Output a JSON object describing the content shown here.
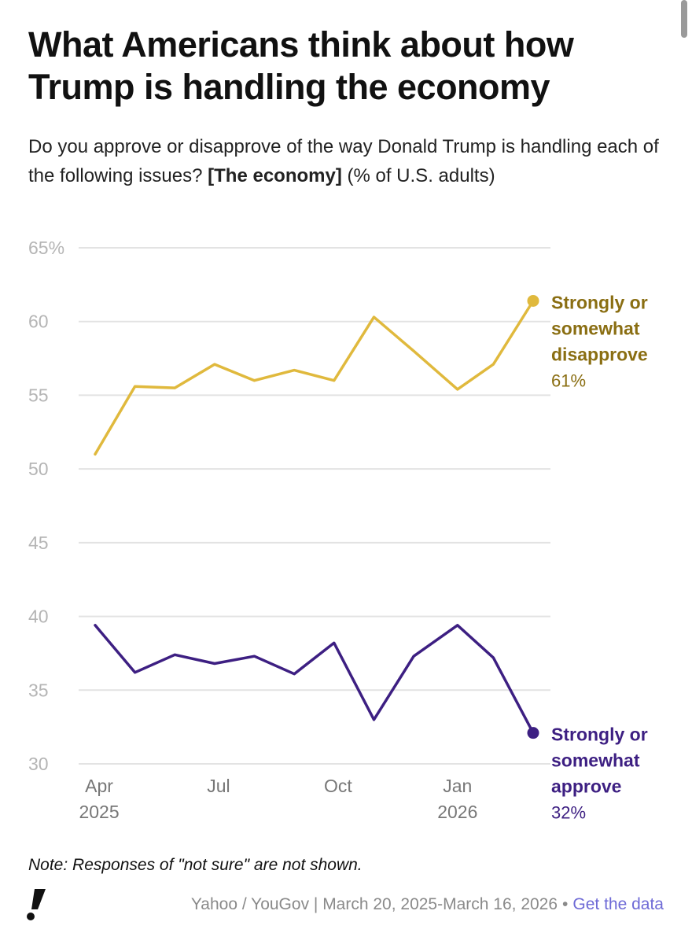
{
  "header": {
    "title": "What Americans think about how Trump is handling the economy",
    "subtitle_pre": "Do you approve or disapprove of the way Donald Trump is handling each of the following issues?",
    "subtitle_emph": "[The economy]",
    "subtitle_post": "(% of U.S. adults)"
  },
  "chart_data": {
    "type": "line",
    "title": "What Americans think about how Trump is handling the economy",
    "ylim": [
      30,
      65
    ],
    "yticks": [
      "65%",
      "60",
      "55",
      "50",
      "45",
      "40",
      "35",
      "30"
    ],
    "ytick_values": [
      65,
      60,
      55,
      50,
      45,
      40,
      35,
      30
    ],
    "x_range": [
      0,
      11.9
    ],
    "xticks": [
      {
        "x": 0.1,
        "line1": "Apr",
        "line2": "2025"
      },
      {
        "x": 3.1,
        "line1": "Jul",
        "line2": ""
      },
      {
        "x": 6.1,
        "line1": "Oct",
        "line2": ""
      },
      {
        "x": 9.1,
        "line1": "Jan",
        "line2": "2026"
      }
    ],
    "series": [
      {
        "name": "Strongly or somewhat disapprove",
        "label_lines": [
          "Strongly or",
          "somewhat",
          "disapprove"
        ],
        "end_value": "61%",
        "color": "#e0b93d",
        "label_color": "#8a6e12",
        "x": [
          0,
          1,
          2,
          3,
          4,
          5,
          6,
          7,
          8,
          9.1,
          10,
          11
        ],
        "values": [
          51.0,
          55.6,
          55.5,
          57.1,
          56.0,
          56.7,
          56.0,
          60.3,
          58.0,
          55.4,
          57.1,
          61.4
        ]
      },
      {
        "name": "Strongly or somewhat approve",
        "label_lines": [
          "Strongly or",
          "somewhat",
          "approve"
        ],
        "end_value": "32%",
        "color": "#3d1f82",
        "label_color": "#3d1f82",
        "x": [
          0,
          1,
          2,
          3,
          4,
          5,
          6,
          7,
          8,
          9.1,
          10,
          11
        ],
        "values": [
          39.4,
          36.2,
          37.4,
          36.8,
          37.3,
          36.1,
          38.2,
          33.0,
          37.3,
          39.4,
          37.2,
          32.1
        ]
      }
    ]
  },
  "footer": {
    "note": "Note: Responses of \"not sure\" are not shown.",
    "source": "Yahoo / YouGov | March 20, 2025-March 16, 2026",
    "separator": "•",
    "link_label": "Get the data",
    "logo_icon": "exclamation-logo-icon"
  }
}
